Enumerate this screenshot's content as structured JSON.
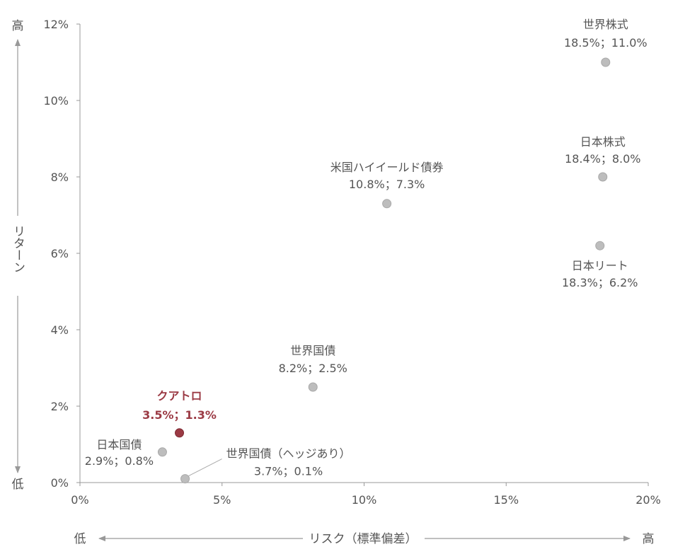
{
  "chart_data": {
    "type": "scatter",
    "xlim": [
      0,
      20
    ],
    "ylim": [
      0,
      12
    ],
    "x_ticks": [
      "0%",
      "5%",
      "10%",
      "15%",
      "20%"
    ],
    "y_ticks": [
      "0%",
      "2%",
      "4%",
      "6%",
      "8%",
      "10%",
      "12%"
    ],
    "xlabel": "リスク（標準偏差）",
    "ylabel": "リターン",
    "x_low_label": "低",
    "x_high_label": "高",
    "y_low_label": "低",
    "y_high_label": "高",
    "grid": false,
    "colors": {
      "default_point": "#bdbdbd",
      "highlight_point": "#9b3a44",
      "text": "#555555",
      "axis": "#999999"
    },
    "points": [
      {
        "name": "世界株式",
        "value_label": "18.5%；11.0%",
        "x": 18.5,
        "y": 11.0,
        "highlight": false
      },
      {
        "name": "日本株式",
        "value_label": "18.4%；8.0%",
        "x": 18.4,
        "y": 8.0,
        "highlight": false
      },
      {
        "name": "日本リート",
        "value_label": "18.3%；6.2%",
        "x": 18.3,
        "y": 6.2,
        "highlight": false
      },
      {
        "name": "米国ハイイールド債券",
        "value_label": "10.8%；7.3%",
        "x": 10.8,
        "y": 7.3,
        "highlight": false
      },
      {
        "name": "世界国債",
        "value_label": "8.2%；2.5%",
        "x": 8.2,
        "y": 2.5,
        "highlight": false
      },
      {
        "name": "クアトロ",
        "value_label": "3.5%；1.3%",
        "x": 3.5,
        "y": 1.3,
        "highlight": true
      },
      {
        "name": "日本国債",
        "value_label": "2.9%；0.8%",
        "x": 2.9,
        "y": 0.8,
        "highlight": false
      },
      {
        "name": "世界国債（ヘッジあり）",
        "value_label": "3.7%；0.1%",
        "x": 3.7,
        "y": 0.1,
        "highlight": false
      }
    ]
  }
}
